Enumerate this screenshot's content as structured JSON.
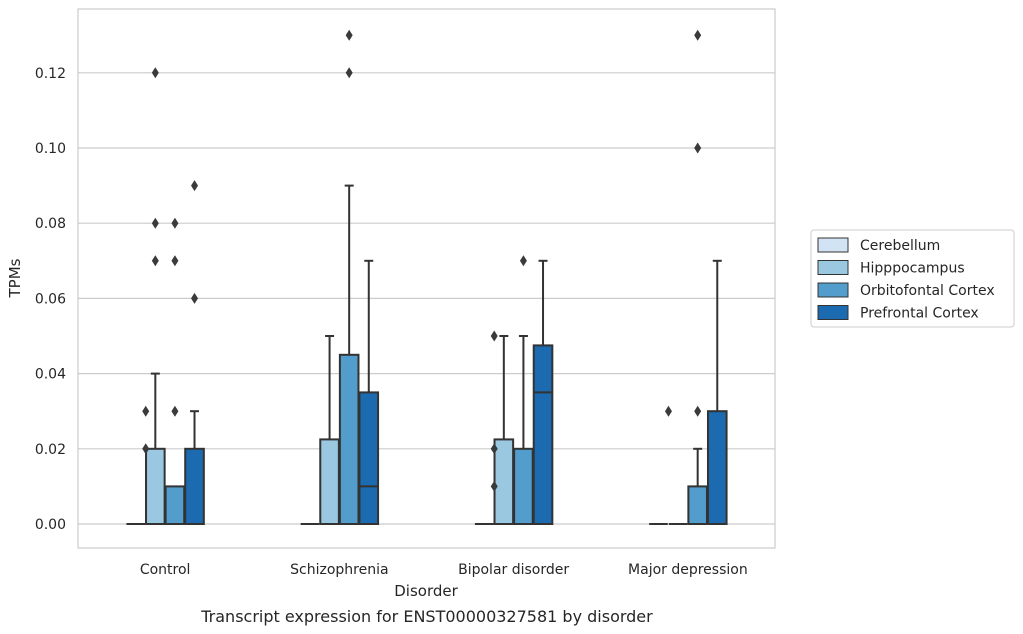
{
  "chart_data": {
    "type": "box",
    "xlabel": "Disorder",
    "ylabel": "TPMs",
    "caption": "Transcript expression for ENST00000327581 by disorder",
    "ylim": [
      -0.0065,
      0.137
    ],
    "yticks": [
      0.0,
      0.02,
      0.04,
      0.06,
      0.08,
      0.1,
      0.12
    ],
    "ytick_labels": [
      "0.00",
      "0.02",
      "0.04",
      "0.06",
      "0.08",
      "0.10",
      "0.12"
    ],
    "grid": "horizontal",
    "legend_position": "right",
    "categories": [
      "Control",
      "Schizophrenia",
      "Bipolar disorder",
      "Major depression"
    ],
    "series": [
      {
        "name": "Cerebellum",
        "color": "#d2e3f3",
        "boxes": [
          {
            "q1": 0.0,
            "median": 0.0,
            "q3": 0.0,
            "whisker_low": 0.0,
            "whisker_high": 0.0,
            "outliers": []
          },
          {
            "q1": 0.0,
            "median": 0.0,
            "q3": 0.0,
            "whisker_low": 0.0,
            "whisker_high": 0.0,
            "outliers": []
          },
          {
            "q1": 0.0,
            "median": 0.0,
            "q3": 0.0,
            "whisker_low": 0.0,
            "whisker_high": 0.0,
            "outliers": []
          },
          {
            "q1": 0.0,
            "median": 0.0,
            "q3": 0.0,
            "whisker_low": 0.0,
            "whisker_high": 0.0,
            "outliers": []
          }
        ]
      },
      {
        "name": "Hipppocampus",
        "color": "#9ac8e0",
        "boxes": [
          {
            "q1": 0.0,
            "median": 0.0,
            "q3": 0.02,
            "whisker_low": 0.0,
            "whisker_high": 0.04,
            "outliers": [
              0.07,
              0.08,
              0.12
            ]
          },
          {
            "q1": 0.0,
            "median": 0.0,
            "q3": 0.0225,
            "whisker_low": 0.0,
            "whisker_high": 0.05,
            "outliers": []
          },
          {
            "q1": 0.0,
            "median": 0.0,
            "q3": 0.0225,
            "whisker_low": 0.0,
            "whisker_high": 0.05,
            "outliers": []
          },
          {
            "q1": 0.0,
            "median": 0.0,
            "q3": 0.0,
            "whisker_low": 0.0,
            "whisker_high": 0.0,
            "outliers": []
          }
        ]
      },
      {
        "name": "Orbitofontal Cortex",
        "color": "#529dcc",
        "boxes": [
          {
            "q1": 0.0,
            "median": 0.0,
            "q3": 0.01,
            "whisker_low": 0.0,
            "whisker_high": 0.01,
            "outliers": [
              0.03,
              0.07,
              0.08
            ]
          },
          {
            "q1": 0.0,
            "median": 0.0,
            "q3": 0.045,
            "whisker_low": 0.0,
            "whisker_high": 0.09,
            "outliers": [
              0.12,
              0.13
            ]
          },
          {
            "q1": 0.0,
            "median": 0.0,
            "q3": 0.02,
            "whisker_low": 0.0,
            "whisker_high": 0.05,
            "outliers": [
              0.07
            ]
          },
          {
            "q1": 0.0,
            "median": 0.0,
            "q3": 0.01,
            "whisker_low": 0.0,
            "whisker_high": 0.02,
            "outliers": [
              0.03,
              0.1,
              0.13
            ]
          }
        ]
      },
      {
        "name": "Prefrontal Cortex",
        "color": "#1c6aaf",
        "boxes": [
          {
            "q1": 0.0,
            "median": 0.0,
            "q3": 0.02,
            "whisker_low": 0.0,
            "whisker_high": 0.03,
            "outliers": [
              0.06,
              0.09
            ]
          },
          {
            "q1": 0.0,
            "median": 0.01,
            "q3": 0.035,
            "whisker_low": 0.0,
            "whisker_high": 0.07,
            "outliers": []
          },
          {
            "q1": 0.0,
            "median": 0.035,
            "q3": 0.0475,
            "whisker_low": 0.0,
            "whisker_high": 0.07,
            "outliers": []
          },
          {
            "q1": 0.0,
            "median": 0.0,
            "q3": 0.03,
            "whisker_low": 0.0,
            "whisker_high": 0.07,
            "outliers": []
          }
        ]
      }
    ],
    "left_outliers": [
      {
        "category": "Control",
        "values": [
          0.02,
          0.03
        ]
      },
      {
        "category": "Bipolar disorder",
        "values": [
          0.01,
          0.02,
          0.05
        ]
      },
      {
        "category": "Major depression",
        "values": [
          0.03
        ]
      }
    ]
  },
  "colors": {
    "line": "#333333",
    "grid": "#cccccc",
    "frame": "#cccccc",
    "outlier": "#3a3a3a"
  }
}
